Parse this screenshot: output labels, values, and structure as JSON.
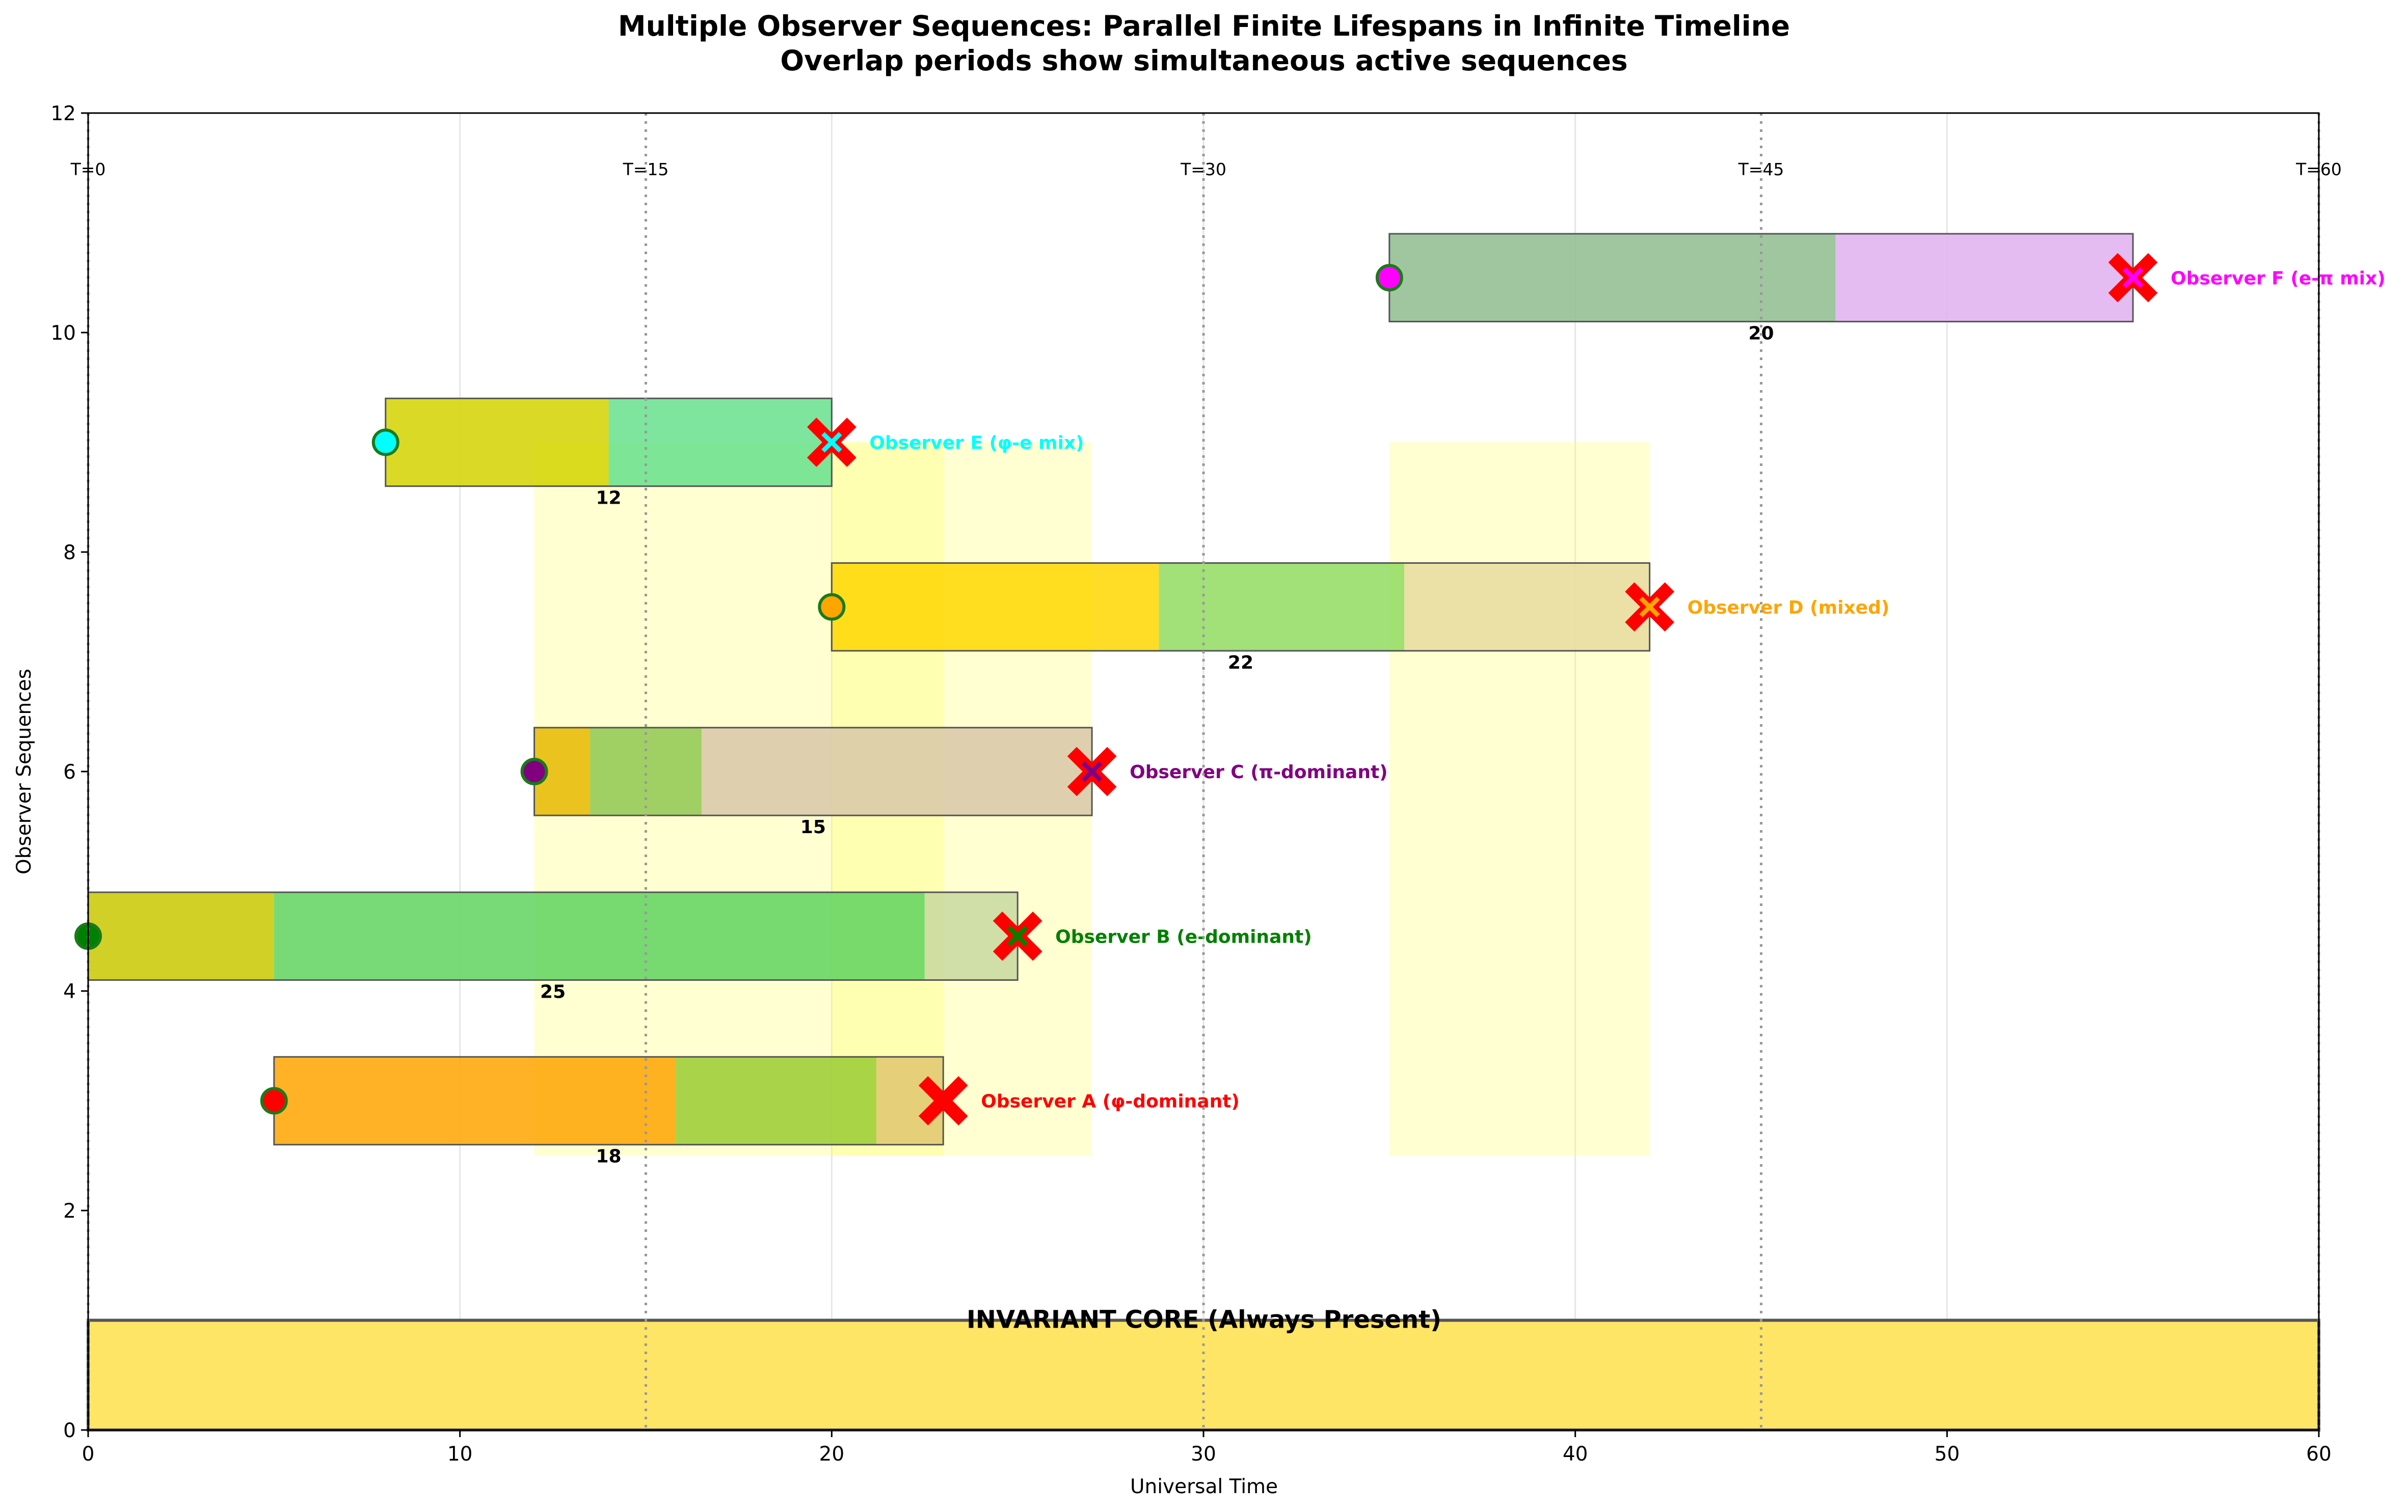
{
  "chart_data": {
    "type": "timeline",
    "title_lines": [
      "Multiple Observer Sequences: Parallel Finite Lifespans in Infinite Timeline",
      "Overlap periods show simultaneous active sequences"
    ],
    "xlabel": "Universal Time",
    "ylabel": "Observer Sequences",
    "xlim": [
      0,
      60
    ],
    "ylim": [
      0,
      12
    ],
    "xticks": [
      0,
      10,
      20,
      30,
      40,
      50,
      60
    ],
    "yticks": [
      0,
      2,
      4,
      6,
      8,
      10,
      12
    ],
    "grid": "vertical",
    "time_markers": [
      {
        "t": 0,
        "label": "T=0"
      },
      {
        "t": 15,
        "label": "T=15"
      },
      {
        "t": 30,
        "label": "T=30"
      },
      {
        "t": 45,
        "label": "T=45"
      },
      {
        "t": 60,
        "label": "T=60"
      }
    ],
    "invariant_core": {
      "label": "INVARIANT CORE (Always Present)",
      "y_range": [
        0,
        1
      ],
      "color": "#FFE566"
    },
    "overlap_regions": [
      {
        "start": 12,
        "end": 23,
        "y_range": [
          2.5,
          9
        ],
        "color": "#FFFF66"
      },
      {
        "start": 20,
        "end": 27,
        "y_range": [
          2.5,
          9
        ],
        "color": "#FFFF66"
      },
      {
        "start": 35,
        "end": 42,
        "y_range": [
          2.5,
          9
        ],
        "color": "#FFFF66"
      }
    ],
    "observers": [
      {
        "name": "Observer A (φ-dominant)",
        "start": 5,
        "end": 23,
        "lifespan": 18,
        "y": 3,
        "color": "#FF0000",
        "segments": [
          {
            "start": 5,
            "end": 15.8,
            "color": "#FFA500"
          },
          {
            "start": 15.8,
            "end": 21.2,
            "color": "#9ACD32"
          },
          {
            "start": 21.2,
            "end": 23,
            "color": "#E0C870"
          }
        ]
      },
      {
        "name": "Observer B (e-dominant)",
        "start": 0,
        "end": 25,
        "lifespan": 25,
        "y": 4.5,
        "color": "#008000",
        "segments": [
          {
            "start": 0,
            "end": 5,
            "color": "#C8C800"
          },
          {
            "start": 5,
            "end": 22.5,
            "color": "#5FD35F"
          },
          {
            "start": 22.5,
            "end": 25,
            "color": "#C8D8A0"
          }
        ]
      },
      {
        "name": "Observer C (π-dominant)",
        "start": 12,
        "end": 27,
        "lifespan": 15,
        "y": 6,
        "color": "#800080",
        "segments": [
          {
            "start": 12,
            "end": 13.5,
            "color": "#E6B800"
          },
          {
            "start": 13.5,
            "end": 16.5,
            "color": "#8FC850"
          },
          {
            "start": 16.5,
            "end": 27,
            "color": "#D8C8A8"
          }
        ]
      },
      {
        "name": "Observer D (mixed)",
        "start": 20,
        "end": 42,
        "lifespan": 22,
        "y": 7.5,
        "color": "#FFA500",
        "segments": [
          {
            "start": 20,
            "end": 28.8,
            "color": "#FFD700"
          },
          {
            "start": 28.8,
            "end": 35.4,
            "color": "#90DC60"
          },
          {
            "start": 35.4,
            "end": 42,
            "color": "#E8DCA0"
          }
        ]
      },
      {
        "name": "Observer E (φ-e mix)",
        "start": 8,
        "end": 20,
        "lifespan": 12,
        "y": 9,
        "color": "#00FFFF",
        "segments": [
          {
            "start": 8,
            "end": 14,
            "color": "#D4D400"
          },
          {
            "start": 14,
            "end": 20,
            "color": "#66E08C"
          }
        ]
      },
      {
        "name": "Observer F (e-π mix)",
        "start": 35,
        "end": 55,
        "lifespan": 20,
        "y": 10.5,
        "color": "#FF00FF",
        "segments": [
          {
            "start": 35,
            "end": 47,
            "color": "#8FBC8F"
          },
          {
            "start": 47,
            "end": 55,
            "color": "#E0B0F0"
          }
        ]
      }
    ]
  }
}
